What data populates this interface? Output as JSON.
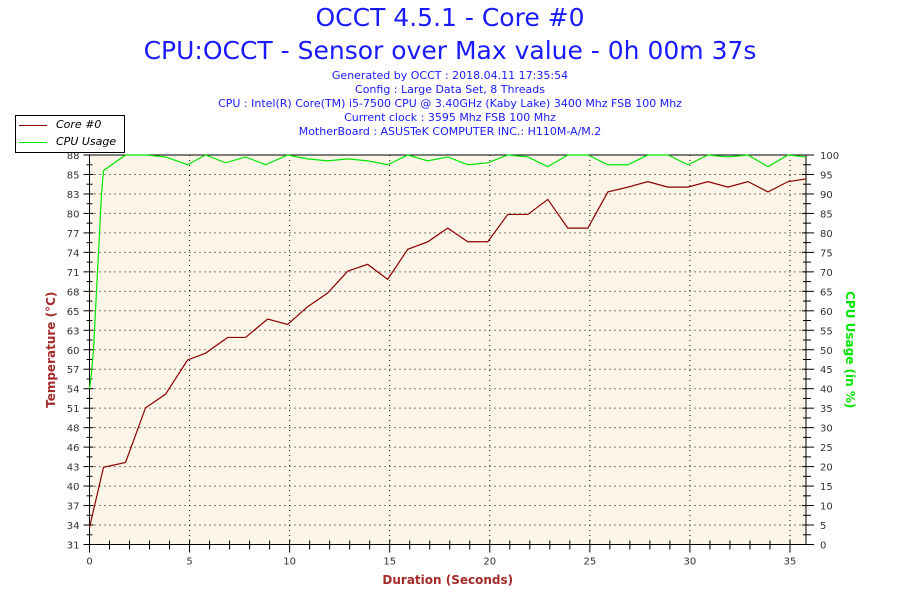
{
  "header": {
    "title": "OCCT 4.5.1 - Core #0",
    "subtitle": "CPU:OCCT - Sensor over Max value - 0h 00m 37s",
    "info": [
      "Generated by OCCT : 2018.04.11 17:35:54",
      "Config : Large Data Set, 8 Threads",
      "CPU : Intel(R) Core(TM) i5-7500 CPU @ 3.40GHz (Kaby Lake) 3400 Mhz FSB 100 Mhz",
      "Current clock : 3595 Mhz FSB 100 Mhz",
      "MotherBoard : ASUSTeK COMPUTER INC.: H110M-A/M.2"
    ]
  },
  "colors": {
    "temp": "#8b0000",
    "cpu": "#00e600",
    "plot_bg": "#fdf6e8",
    "title": "#1a1aff",
    "xlabel": "#a52a2a",
    "ylabel_left": "#a52a2a",
    "ylabel_right": "#00e600"
  },
  "chart_data": {
    "type": "line",
    "title": "OCCT 4.5.1 - Core #0",
    "xlabel": "Duration (Seconds)",
    "ylabel": "Temperature (°C)",
    "ylabel_right": "CPU Usage (in %)",
    "xlim": [
      0,
      35.8
    ],
    "ylim": [
      31,
      88
    ],
    "ylim_right": [
      0,
      100
    ],
    "x_ticks": [
      0,
      5,
      10,
      15,
      20,
      25,
      30,
      35
    ],
    "y_ticks": [
      31,
      34,
      37,
      40,
      43,
      46,
      48,
      51,
      54,
      57,
      60,
      63,
      65,
      68,
      71,
      74,
      77,
      80,
      83,
      85,
      88
    ],
    "y_ticks_right": [
      0,
      5,
      10,
      15,
      20,
      25,
      30,
      35,
      40,
      45,
      50,
      55,
      60,
      65,
      70,
      75,
      80,
      85,
      90,
      95,
      100
    ],
    "grid": true,
    "legend": "top-left",
    "series": [
      {
        "name": "Core #0",
        "axis": "left",
        "x": [
          0,
          0.7,
          1.8,
          2.8,
          3.8,
          4.9,
          5.8,
          6.9,
          7.8,
          8.9,
          9.9,
          10.9,
          11.9,
          12.9,
          13.9,
          14.9,
          15.9,
          16.9,
          17.9,
          18.9,
          19.9,
          20.9,
          21.9,
          22.9,
          23.9,
          24.9,
          25.9,
          26.9,
          27.9,
          28.9,
          29.9,
          30.9,
          31.9,
          32.9,
          33.9,
          34.9,
          35.8
        ],
        "y": [
          33.5,
          42.3,
          43,
          51,
          53,
          58,
          59,
          61.3,
          61.3,
          64,
          63.2,
          65.8,
          67.8,
          71,
          72,
          69.8,
          74.2,
          75.3,
          77.3,
          75.3,
          75.3,
          79.3,
          79.3,
          81.5,
          77.3,
          77.3,
          82.6,
          83.3,
          84.1,
          83.3,
          83.3,
          84.1,
          83.3,
          84.1,
          82.6,
          84.1,
          84.5
        ]
      },
      {
        "name": "CPU Usage",
        "axis": "right",
        "x": [
          0,
          0.1,
          0.2,
          0.3,
          0.4,
          0.5,
          0.6,
          0.7,
          1.8,
          2.8,
          3.8,
          4.9,
          5.8,
          6.8,
          7.8,
          8.8,
          9.9,
          10.9,
          11.9,
          12.9,
          13.9,
          14.9,
          15.9,
          16.9,
          17.9,
          18.9,
          19.9,
          20.9,
          21.9,
          22.9,
          23.9,
          24.9,
          25.9,
          26.9,
          27.9,
          28.9,
          29.9,
          30.9,
          31.9,
          32.9,
          33.9,
          34.9,
          35.8
        ],
        "y": [
          40,
          44,
          50,
          60,
          70,
          80,
          90,
          96,
          100,
          100,
          99.5,
          97.5,
          100,
          98,
          99.5,
          97.5,
          100,
          99,
          98.5,
          99,
          98.5,
          97.5,
          100,
          98.5,
          99.5,
          97.5,
          98,
          100,
          99.5,
          97,
          100,
          100,
          97.5,
          97.5,
          100,
          100,
          97.5,
          100,
          99.5,
          100,
          97,
          100,
          99.5
        ]
      }
    ]
  }
}
